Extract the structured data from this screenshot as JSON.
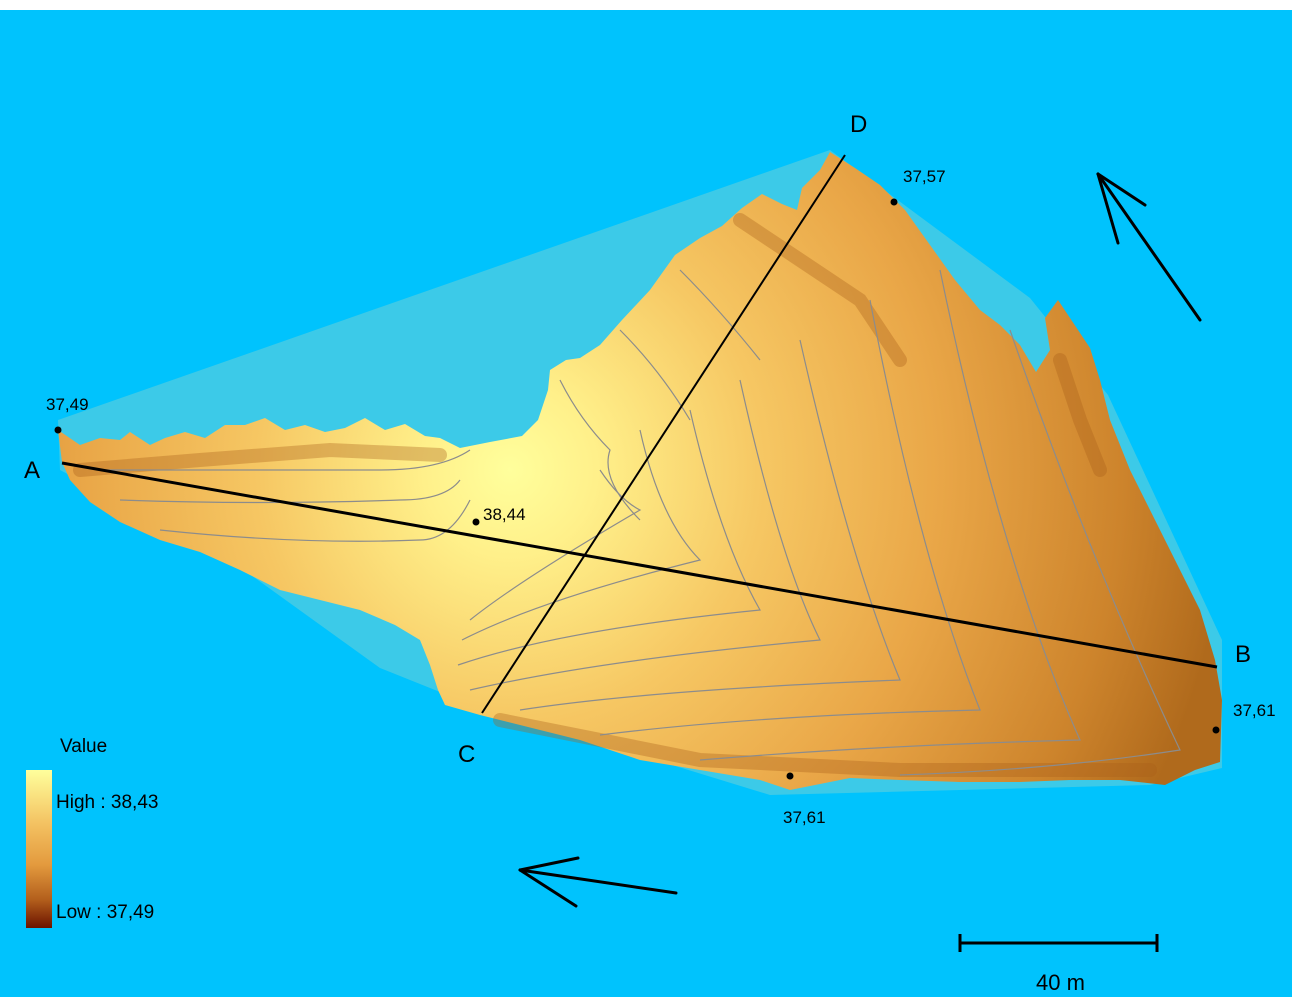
{
  "map": {
    "colors": {
      "water": "#00c3fd",
      "hull": "#3ccae8",
      "ramp_high": "#ffff9c",
      "ramp_mid": "#f0b040",
      "ramp_low": "#7a1c00",
      "contour": "#8c8c8c"
    },
    "profile_points": {
      "a": "A",
      "b": "B",
      "c": "C",
      "d": "D"
    },
    "elevations": {
      "a_top": "37,49",
      "center": "38,44",
      "d_right": "37,57",
      "b_right": "37,61",
      "bottom": "37,61"
    },
    "arrows": [
      "arrow-upper-right",
      "arrow-bottom-center"
    ],
    "legend": {
      "title": "Value",
      "high": "High : 38,43",
      "low": "Low : 37,49"
    },
    "scale_bar": {
      "label": "40 m"
    }
  }
}
